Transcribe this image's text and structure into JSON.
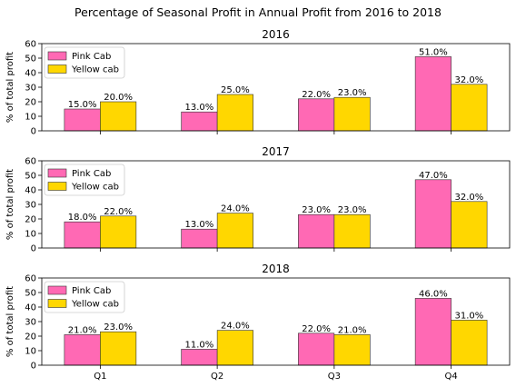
{
  "suptitle": "Percentage of Seasonal Profit in Annual Profit from 2016 to 2018",
  "chart_data": [
    {
      "type": "bar",
      "title": "2016",
      "xlabel": "",
      "ylabel": "% of total profit",
      "ylim": [
        0,
        60
      ],
      "yticks": [
        0,
        10,
        20,
        30,
        40,
        50,
        60
      ],
      "categories": [
        "Q1",
        "Q2",
        "Q3",
        "Q4"
      ],
      "show_xticklabels": false,
      "grid": false,
      "legend": "top-left",
      "series": [
        {
          "name": "Pink Cab",
          "values": [
            15.0,
            13.0,
            22.0,
            51.0
          ],
          "labels": [
            "15.0%",
            "13.0%",
            "22.0%",
            "51.0%"
          ],
          "color": "#ff69b4"
        },
        {
          "name": "Yellow cab",
          "values": [
            20.0,
            25.0,
            23.0,
            32.0
          ],
          "labels": [
            "20.0%",
            "25.0%",
            "23.0%",
            "32.0%"
          ],
          "color": "#ffd700"
        }
      ]
    },
    {
      "type": "bar",
      "title": "2017",
      "xlabel": "",
      "ylabel": "% of total profit",
      "ylim": [
        0,
        60
      ],
      "yticks": [
        0,
        10,
        20,
        30,
        40,
        50,
        60
      ],
      "categories": [
        "Q1",
        "Q2",
        "Q3",
        "Q4"
      ],
      "show_xticklabels": false,
      "grid": false,
      "legend": "top-left",
      "series": [
        {
          "name": "Pink Cab",
          "values": [
            18.0,
            13.0,
            23.0,
            47.0
          ],
          "labels": [
            "18.0%",
            "13.0%",
            "23.0%",
            "47.0%"
          ],
          "color": "#ff69b4"
        },
        {
          "name": "Yellow cab",
          "values": [
            22.0,
            24.0,
            23.0,
            32.0
          ],
          "labels": [
            "22.0%",
            "24.0%",
            "23.0%",
            "32.0%"
          ],
          "color": "#ffd700"
        }
      ]
    },
    {
      "type": "bar",
      "title": "2018",
      "xlabel": "",
      "ylabel": "% of total profit",
      "ylim": [
        0,
        60
      ],
      "yticks": [
        0,
        10,
        20,
        30,
        40,
        50,
        60
      ],
      "categories": [
        "Q1",
        "Q2",
        "Q3",
        "Q4"
      ],
      "show_xticklabels": true,
      "grid": false,
      "legend": "top-left",
      "series": [
        {
          "name": "Pink Cab",
          "values": [
            21.0,
            11.0,
            22.0,
            46.0
          ],
          "labels": [
            "21.0%",
            "11.0%",
            "22.0%",
            "46.0%"
          ],
          "color": "#ff69b4"
        },
        {
          "name": "Yellow cab",
          "values": [
            23.0,
            24.0,
            21.0,
            31.0
          ],
          "labels": [
            "23.0%",
            "24.0%",
            "21.0%",
            "31.0%"
          ],
          "color": "#ffd700"
        }
      ]
    }
  ]
}
